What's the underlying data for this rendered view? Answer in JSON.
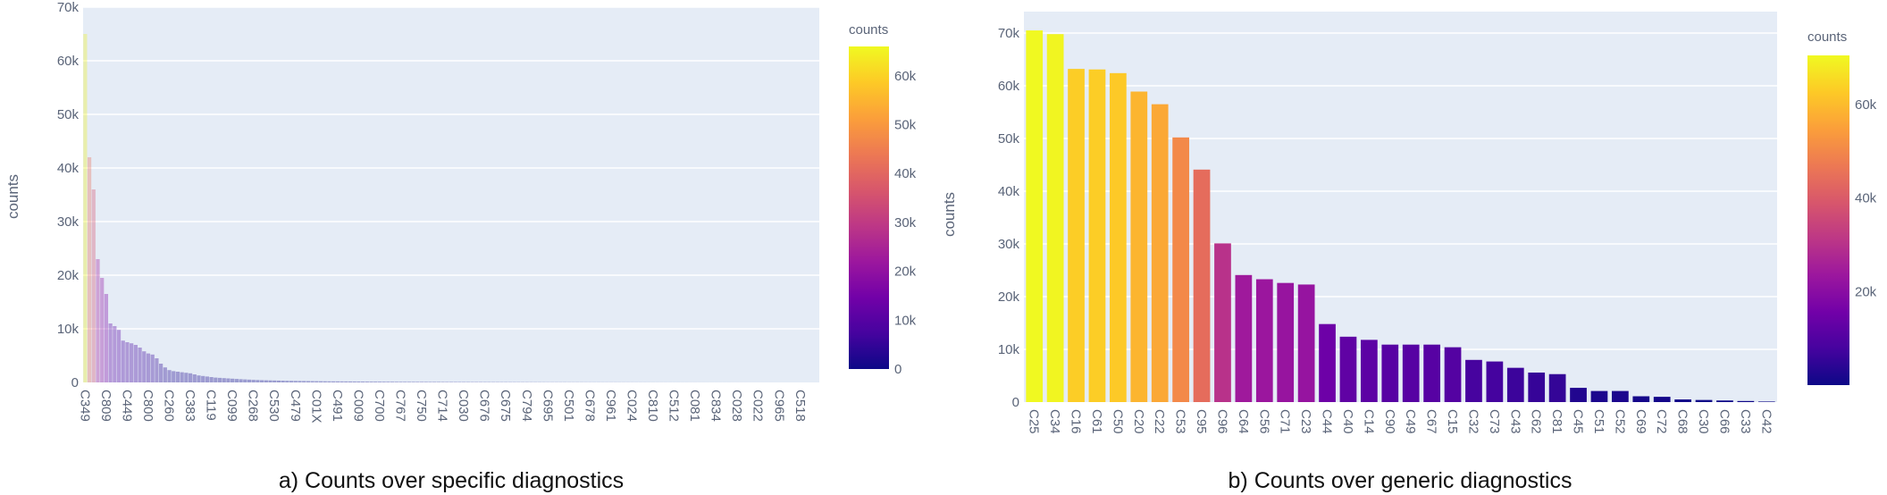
{
  "chart_data": [
    {
      "type": "bar",
      "caption": "a) Counts over specific diagnostics",
      "ylabel": "counts",
      "ylim": [
        0,
        70000
      ],
      "yticks": [
        "0",
        "10k",
        "20k",
        "30k",
        "40k",
        "50k",
        "60k",
        "70k"
      ],
      "grid": true,
      "colorscale": "plasma",
      "bar_opacity": 0.35,
      "color_range": [
        0,
        66000
      ],
      "colorbar": {
        "title": "counts",
        "ticks": [
          "0",
          "10k",
          "20k",
          "30k",
          "40k",
          "50k",
          "60k"
        ],
        "placement": "right"
      },
      "tick_labels": [
        "C349",
        "C809",
        "C449",
        "C800",
        "C260",
        "C383",
        "C119",
        "C099",
        "C268",
        "C530",
        "C479",
        "C01X",
        "C491",
        "C009",
        "C700",
        "C767",
        "C750",
        "C714",
        "C030",
        "C676",
        "C675",
        "C794",
        "C695",
        "C501",
        "C678",
        "C961",
        "C024",
        "C810",
        "C512",
        "C081",
        "C834",
        "C028",
        "C022",
        "C965",
        "C518"
      ],
      "bars_per_tick": 5,
      "values": [
        65000,
        42000,
        36000,
        23000,
        19500,
        16500,
        11000,
        10500,
        9800,
        7800,
        7500,
        7300,
        7000,
        6500,
        5800,
        5400,
        5200,
        4500,
        3500,
        2800,
        2300,
        2100,
        2000,
        1900,
        1800,
        1700,
        1500,
        1300,
        1200,
        1100,
        1000,
        900,
        850,
        800,
        750,
        700,
        650,
        600,
        560,
        520,
        480,
        450,
        420,
        400,
        380,
        360,
        340,
        320,
        300,
        290,
        280,
        270,
        260,
        250,
        240,
        230,
        220,
        210,
        200,
        195,
        190,
        185,
        180,
        175,
        170,
        165,
        160,
        155,
        150,
        145,
        140,
        135,
        130,
        125,
        120,
        115,
        112,
        110,
        107,
        105,
        102,
        100,
        97,
        95,
        92,
        90,
        87,
        85,
        82,
        80,
        78,
        76,
        74,
        72,
        70,
        68,
        66,
        64,
        62,
        60,
        58,
        56,
        54,
        52,
        50,
        48,
        46,
        44,
        42,
        40,
        39,
        38,
        37,
        36,
        35,
        34,
        33,
        32,
        31,
        30,
        29,
        28,
        27,
        26,
        25,
        24,
        23,
        22,
        21,
        20,
        19,
        18,
        17,
        16,
        15,
        14,
        13,
        12,
        11,
        10,
        9,
        9,
        8,
        8,
        7,
        7,
        6,
        6,
        5,
        5,
        5,
        4,
        4,
        4,
        3,
        3,
        3,
        3,
        2,
        2,
        2,
        2,
        2,
        2,
        1,
        1,
        1,
        1,
        1,
        1,
        1,
        1,
        1,
        1,
        1
      ]
    },
    {
      "type": "bar",
      "caption": "b) Counts over generic diagnostics",
      "ylabel": "counts",
      "ylim": [
        0,
        74000
      ],
      "yticks": [
        "0",
        "10k",
        "20k",
        "30k",
        "40k",
        "50k",
        "60k",
        "70k"
      ],
      "grid": true,
      "colorscale": "plasma",
      "bar_opacity": 1,
      "color_range": [
        0,
        70500
      ],
      "colorbar": {
        "title": "counts",
        "ticks": [
          "20k",
          "40k",
          "60k"
        ],
        "placement": "right"
      },
      "categories": [
        "C25",
        "C34",
        "C16",
        "C61",
        "C50",
        "C20",
        "C22",
        "C53",
        "C95",
        "C96",
        "C64",
        "C56",
        "C71",
        "C23",
        "C44",
        "C40",
        "C14",
        "C90",
        "C49",
        "C67",
        "C15",
        "C32",
        "C73",
        "C43",
        "C62",
        "C81",
        "C45",
        "C51",
        "C52",
        "C69",
        "C72",
        "C68",
        "C30",
        "C66",
        "C33",
        "C42"
      ],
      "values": [
        70500,
        69800,
        63200,
        63100,
        62400,
        58900,
        56500,
        50200,
        44100,
        30100,
        24100,
        23300,
        22600,
        22300,
        14800,
        12400,
        11800,
        10900,
        10900,
        10900,
        10400,
        8000,
        7700,
        6500,
        5600,
        5300,
        2700,
        2100,
        2100,
        1100,
        1000,
        500,
        400,
        300,
        200,
        100
      ]
    }
  ]
}
